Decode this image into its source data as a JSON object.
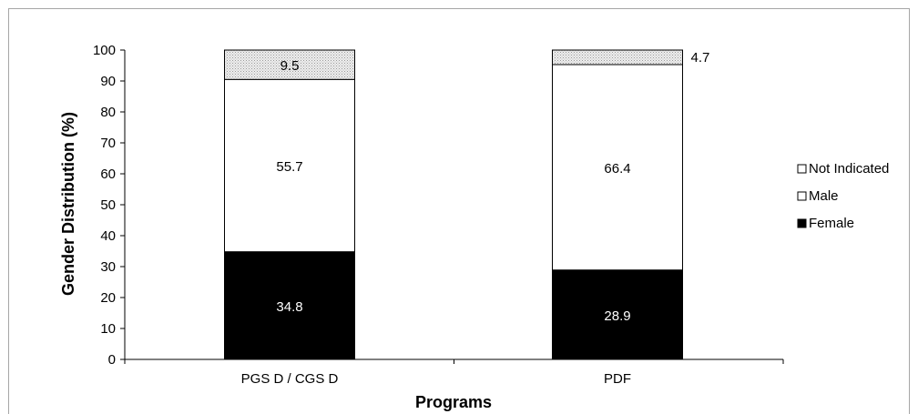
{
  "chart_data": {
    "type": "bar",
    "stacked": true,
    "categories": [
      "PGS D / CGS D",
      "PDF"
    ],
    "series": [
      {
        "name": "Female",
        "values": [
          34.8,
          28.9
        ],
        "color": "#000000",
        "label_color": "#ffffff"
      },
      {
        "name": "Male",
        "values": [
          55.7,
          66.4
        ],
        "color": "#ffffff",
        "label_color": "#000000"
      },
      {
        "name": "Not Indicated",
        "values": [
          9.5,
          4.7
        ],
        "color": "#e2e2e2",
        "label_color": "#000000",
        "pattern": "dotted"
      }
    ],
    "xlabel": "Programs",
    "ylabel": "Gender Distribution (%)",
    "ylim": [
      0,
      100
    ],
    "yticks": [
      0,
      10,
      20,
      30,
      40,
      50,
      60,
      70,
      80,
      90,
      100
    ],
    "legend": {
      "placement": "right",
      "order": [
        "Not Indicated",
        "Male",
        "Female"
      ]
    },
    "grid": false
  }
}
